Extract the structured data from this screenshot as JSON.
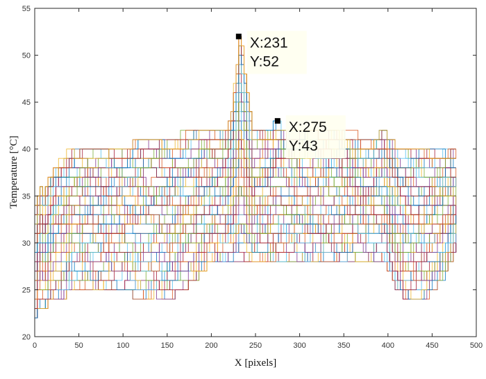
{
  "chart_data": {
    "type": "line",
    "title": "",
    "xlabel": "X [pixels]",
    "ylabel": "Temperature [°C]",
    "xlim": [
      0,
      500
    ],
    "ylim": [
      20,
      55
    ],
    "xticks": [
      0,
      50,
      100,
      150,
      200,
      250,
      300,
      350,
      400,
      450,
      500
    ],
    "yticks": [
      20,
      25,
      30,
      35,
      40,
      45,
      50,
      55
    ],
    "grid": false,
    "legend": "none",
    "num_series_approx": 80,
    "envelope": {
      "x": [
        0,
        5,
        10,
        20,
        30,
        40,
        60,
        80,
        100,
        120,
        150,
        180,
        200,
        215,
        222,
        228,
        231,
        235,
        240,
        246,
        252,
        262,
        275,
        290,
        320,
        350,
        380,
        395,
        400,
        410,
        420,
        430,
        440,
        450,
        460,
        470,
        478
      ],
      "upper": [
        34,
        36,
        35,
        38,
        39,
        40,
        40,
        40,
        40,
        41,
        41,
        42,
        42,
        42,
        44,
        49,
        52,
        50,
        46,
        42,
        42,
        42,
        43,
        42,
        42,
        42,
        41,
        42,
        41,
        40,
        40,
        40,
        40,
        40,
        40,
        40,
        40
      ],
      "lower": [
        22,
        23,
        23,
        24,
        24,
        25,
        25,
        25,
        25,
        24,
        24,
        26,
        28,
        28,
        28,
        28,
        28,
        28,
        28,
        28,
        28,
        28,
        28,
        28,
        28,
        28,
        28,
        28,
        27,
        25,
        24,
        24,
        24,
        25,
        26,
        28,
        30
      ]
    },
    "data_tips": [
      {
        "x": 231,
        "y": 52,
        "x_label": "X:231",
        "y_label": "Y:52"
      },
      {
        "x": 275,
        "y": 43,
        "x_label": "X:275",
        "y_label": "Y:43"
      }
    ],
    "colors": [
      "#0072bd",
      "#d95319",
      "#edb120",
      "#7e2f8e",
      "#77ac30",
      "#4dbeee",
      "#a2142f"
    ]
  }
}
